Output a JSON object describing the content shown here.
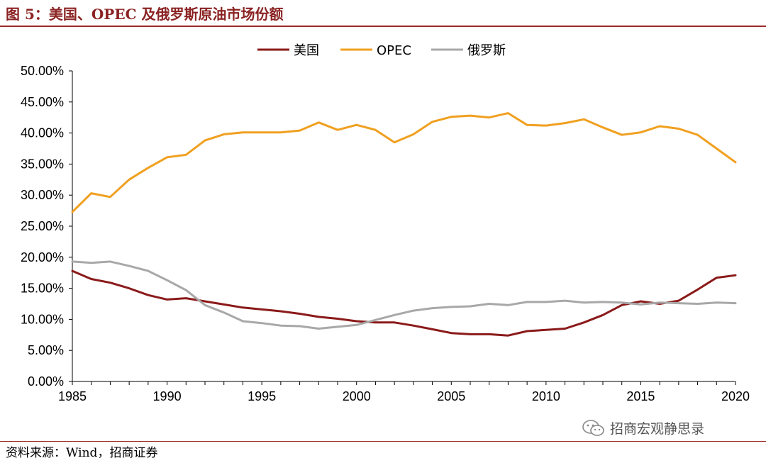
{
  "header": {
    "title": "图 5：美国、OPEC 及俄罗斯原油市场份额"
  },
  "footer": {
    "source": "资料来源：Wind，招商证券",
    "watermark": "招商宏观静思录"
  },
  "icons": {
    "watermark_icon": "wechat-icon"
  },
  "chart_data": {
    "type": "line",
    "title": "",
    "xlabel": "",
    "ylabel": "",
    "xlim": [
      1985,
      2020
    ],
    "ylim": [
      0,
      0.5
    ],
    "yticks": [
      0,
      0.05,
      0.1,
      0.15,
      0.2,
      0.25,
      0.3,
      0.35,
      0.4,
      0.45,
      0.5
    ],
    "ytick_labels": [
      "0.00%",
      "5.00%",
      "10.00%",
      "15.00%",
      "20.00%",
      "25.00%",
      "30.00%",
      "35.00%",
      "40.00%",
      "45.00%",
      "50.00%"
    ],
    "xticks": [
      1985,
      1990,
      1995,
      2000,
      2005,
      2010,
      2015,
      2020
    ],
    "xtick_labels": [
      "1985",
      "1990",
      "1995",
      "2000",
      "2005",
      "2010",
      "2015",
      "2020"
    ],
    "grid": false,
    "legend_position": "top-center",
    "x": [
      1985,
      1986,
      1987,
      1988,
      1989,
      1990,
      1991,
      1992,
      1993,
      1994,
      1995,
      1996,
      1997,
      1998,
      1999,
      2000,
      2001,
      2002,
      2003,
      2004,
      2005,
      2006,
      2007,
      2008,
      2009,
      2010,
      2011,
      2012,
      2013,
      2014,
      2015,
      2016,
      2017,
      2018,
      2019,
      2020
    ],
    "series": [
      {
        "name": "美国",
        "color": "#8B1A1A",
        "values": [
          0.178,
          0.165,
          0.159,
          0.15,
          0.139,
          0.132,
          0.134,
          0.129,
          0.124,
          0.119,
          0.116,
          0.113,
          0.109,
          0.104,
          0.101,
          0.097,
          0.095,
          0.095,
          0.09,
          0.084,
          0.078,
          0.076,
          0.076,
          0.074,
          0.081,
          0.083,
          0.085,
          0.095,
          0.107,
          0.123,
          0.129,
          0.125,
          0.13,
          0.148,
          0.167,
          0.171
        ]
      },
      {
        "name": "OPEC",
        "color": "#F0A020",
        "values": [
          0.273,
          0.303,
          0.297,
          0.325,
          0.344,
          0.361,
          0.365,
          0.388,
          0.398,
          0.401,
          0.401,
          0.401,
          0.404,
          0.417,
          0.405,
          0.413,
          0.405,
          0.385,
          0.398,
          0.418,
          0.426,
          0.428,
          0.425,
          0.432,
          0.413,
          0.412,
          0.416,
          0.422,
          0.409,
          0.397,
          0.401,
          0.411,
          0.407,
          0.397,
          0.375,
          0.353
        ]
      },
      {
        "name": "俄罗斯",
        "color": "#A8A8A8",
        "values": [
          0.193,
          0.191,
          0.193,
          0.186,
          0.178,
          0.163,
          0.147,
          0.123,
          0.111,
          0.097,
          0.094,
          0.09,
          0.089,
          0.085,
          0.088,
          0.091,
          0.099,
          0.107,
          0.114,
          0.118,
          0.12,
          0.121,
          0.125,
          0.123,
          0.128,
          0.128,
          0.13,
          0.127,
          0.128,
          0.127,
          0.124,
          0.127,
          0.126,
          0.125,
          0.127,
          0.126
        ]
      }
    ]
  }
}
